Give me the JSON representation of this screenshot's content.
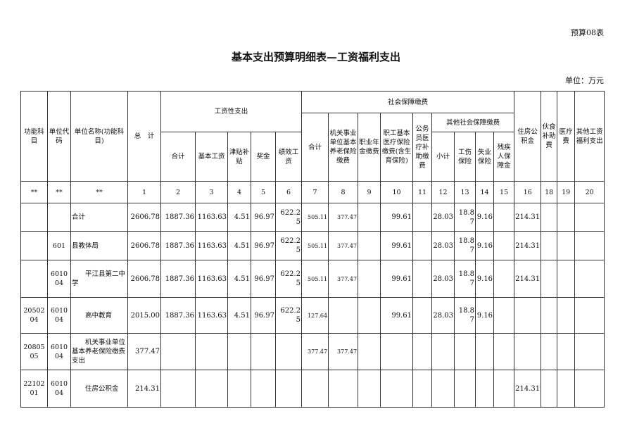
{
  "form_tag": "预算08表",
  "title": "基本支出预算明细表—工资福利支出",
  "unit": "单位：万元",
  "headers": {
    "func_subject": "功能科目",
    "unit_code": "单位代码",
    "unit_name": "单位名称(功能科目)",
    "total": "总　计",
    "wage_group": "工资性支出",
    "wage_cols": [
      "合计",
      "基本工资",
      "津贴补贴",
      "奖金",
      "绩效工资"
    ],
    "social_group": "社会保障缴费",
    "social_total": "合计",
    "pension": "机关事业单位基本养老保险缴费",
    "annuity": "职业年金缴费",
    "medical": "职工基本医疗保险缴费(含生育保险)",
    "civil_medical": "公务员医疗补助缴费",
    "other_social_group": "其他社会保障缴费",
    "other_social_cols": [
      "小计",
      "工伤保险",
      "失业保险",
      "残疾人保障金"
    ],
    "housing": "住房公积金",
    "meal": "伙食补助费",
    "medical_fee": "医疗费",
    "other_welfare": "其他工资福利支出"
  },
  "index_row": [
    "**",
    "**",
    "**",
    "1",
    "2",
    "3",
    "4",
    "5",
    "6",
    "7",
    "8",
    "9",
    "10",
    "11",
    "12",
    "13",
    "14",
    "15",
    "16",
    "18",
    "19",
    "20"
  ],
  "rows": [
    {
      "func": "",
      "code": "",
      "name": "合计",
      "values": [
        "2606.78",
        "1887.36",
        "1163.63",
        "4.51",
        "96.97",
        "622.25",
        "505.11",
        "377.47",
        "",
        "99.61",
        "",
        "28.03",
        "18.87",
        "9.16",
        "",
        "214.31",
        "",
        "",
        ""
      ]
    },
    {
      "func": "",
      "code": "601",
      "name": "县教体局",
      "values": [
        "2606.78",
        "1887.36",
        "1163.63",
        "4.51",
        "96.97",
        "622.25",
        "505.11",
        "377.47",
        "",
        "99.61",
        "",
        "28.03",
        "18.87",
        "9.16",
        "",
        "214.31",
        "",
        "",
        ""
      ]
    },
    {
      "func": "",
      "code": "601004",
      "name": "平江县第二中学",
      "values": [
        "2606.78",
        "1887.36",
        "1163.63",
        "4.51",
        "96.97",
        "622.25",
        "505.11",
        "377.47",
        "",
        "99.61",
        "",
        "28.03",
        "18.87",
        "9.16",
        "",
        "214.31",
        "",
        "",
        ""
      ]
    },
    {
      "func": "2050204",
      "code": "601004",
      "name": "高中教育",
      "values": [
        "2015.00",
        "1887.36",
        "1163.63",
        "4.51",
        "96.97",
        "622.25",
        "127.64",
        "",
        "",
        "99.61",
        "",
        "28.03",
        "18.87",
        "9.16",
        "",
        "",
        "",
        "",
        ""
      ]
    },
    {
      "func": "2080505",
      "code": "601004",
      "name": "机关事业单位基本养老保险缴费支出",
      "values": [
        "377.47",
        "",
        "",
        "",
        "",
        "",
        "377.47",
        "377.47",
        "",
        "",
        "",
        "",
        "",
        "",
        "",
        "",
        "",
        "",
        ""
      ]
    },
    {
      "func": "2210201",
      "code": "601004",
      "name": "住房公积金",
      "values": [
        "214.31",
        "",
        "",
        "",
        "",
        "",
        "",
        "",
        "",
        "",
        "",
        "",
        "",
        "",
        "",
        "214.31",
        "",
        "",
        ""
      ]
    }
  ]
}
